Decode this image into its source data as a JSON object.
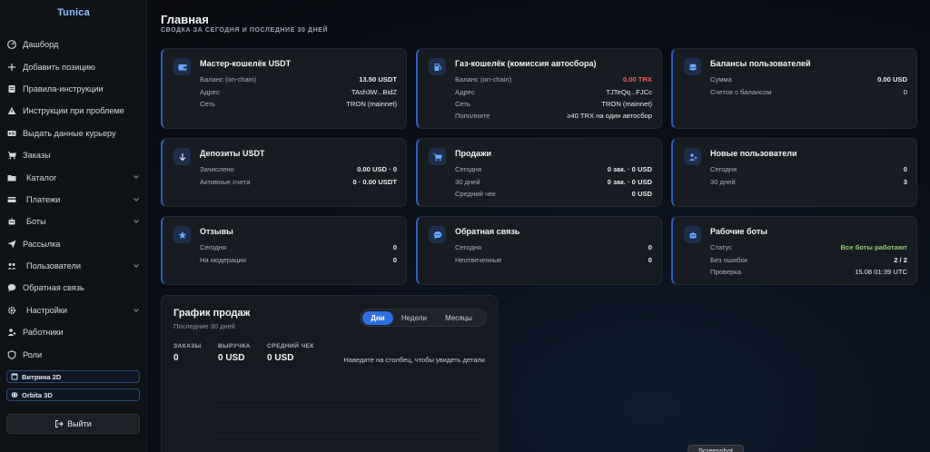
{
  "brand": "Tunica",
  "nav": [
    {
      "label": "Дашборд",
      "icon": "dashboard-icon"
    },
    {
      "label": "Добавить позицию",
      "icon": "plus-icon"
    },
    {
      "label": "Правила-инструкции",
      "icon": "document-icon"
    },
    {
      "label": "Инструкции при проблеме",
      "icon": "warning-icon"
    },
    {
      "label": "Выдать данные курьеру",
      "icon": "id-card-icon"
    },
    {
      "label": "Заказы",
      "icon": "cart-icon"
    },
    {
      "label": "Каталог",
      "icon": "folder-icon"
    },
    {
      "label": "Платежи",
      "icon": "wallet-icon"
    },
    {
      "label": "Боты",
      "icon": "robot-icon"
    },
    {
      "label": "Рассылка",
      "icon": "send-icon"
    },
    {
      "label": "Пользователи",
      "icon": "users-icon"
    },
    {
      "label": "Обратная связь",
      "icon": "chat-icon"
    },
    {
      "label": "Настройки",
      "icon": "gear-icon"
    },
    {
      "label": "Работники",
      "icon": "worker-icon"
    },
    {
      "label": "Роли",
      "icon": "shield-icon"
    }
  ],
  "env_buttons": [
    "Витрина 2D",
    "Orbita 3D"
  ],
  "logout_label": "Выйти",
  "header": {
    "title": "Главная",
    "subtitle": "СВОДКА ЗА СЕГОДНЯ И ПОСЛЕДНИЕ 30 ДНЕЙ"
  },
  "cards": {
    "master_wallet": {
      "title": "Мастер-кошелёк USDT",
      "rows": [
        {
          "k": "Баланс (on-chain)",
          "v": "13.50 USDT"
        },
        {
          "k": "Адрес",
          "v": "TAsh3W...BidZ"
        },
        {
          "k": "Сеть",
          "v": "TRON (mainnet)"
        }
      ]
    },
    "gas_wallet": {
      "title": "Газ-кошелёк (комиссия автосбора)",
      "rows": [
        {
          "k": "Баланс (on-chain)",
          "v": "0.00 TRX"
        },
        {
          "k": "Адрес",
          "v": "TJTeQq...FJCc"
        },
        {
          "k": "Сеть",
          "v": "TRON (mainnet)"
        },
        {
          "k": "Пополните",
          "v": "≥40 TRX на один автосбор"
        }
      ]
    },
    "user_balances": {
      "title": "Балансы пользователей",
      "rows": [
        {
          "k": "Сумма",
          "v": "0.00 USD"
        },
        {
          "k": "Счетов с балансом",
          "v": "0"
        }
      ]
    },
    "deposits": {
      "title": "Депозиты USDT",
      "rows": [
        {
          "k": "Зачислено",
          "v": "0.00 USD · 0"
        },
        {
          "k": "Активные счета",
          "v": "0 · 0.00 USDT"
        }
      ]
    },
    "sales": {
      "title": "Продажи",
      "rows": [
        {
          "k": "Сегодня",
          "v": "0 зак. · 0 USD"
        },
        {
          "k": "30 дней",
          "v": "0 зак. · 0 USD"
        },
        {
          "k": "Средний чек",
          "v": "0 USD"
        }
      ]
    },
    "new_users": {
      "title": "Новые пользователи",
      "rows": [
        {
          "k": "Сегодня",
          "v": "0"
        },
        {
          "k": "30 дней",
          "v": "3"
        }
      ]
    },
    "reviews": {
      "title": "Отзывы",
      "rows": [
        {
          "k": "Сегодня",
          "v": "0"
        },
        {
          "k": "На модерации",
          "v": "0"
        }
      ]
    },
    "feedback": {
      "title": "Обратная связь",
      "rows": [
        {
          "k": "Сегодня",
          "v": "0"
        },
        {
          "k": "Неотвеченные",
          "v": "0"
        }
      ]
    },
    "bots": {
      "title": "Рабочие боты",
      "rows": [
        {
          "k": "Статус",
          "v": "Все боты работают"
        },
        {
          "k": "Без ошибок",
          "v": "2 / 2"
        },
        {
          "k": "Проверка",
          "v": "15.08 01:39 UTC"
        }
      ]
    }
  },
  "chart": {
    "title": "График продаж",
    "subtitle": "Последние 30 дней",
    "tabs": [
      "Дни",
      "Недели",
      "Месяцы"
    ],
    "active_tab": "Дни",
    "stats": [
      {
        "label": "ЗАКАЗЫ",
        "value": "0"
      },
      {
        "label": "ВЫРУЧКА",
        "value": "0 USD"
      },
      {
        "label": "СРЕДНИЙ ЧЕК",
        "value": "0 USD"
      }
    ],
    "hint": "Наведите на столбец, чтобы увидеть детали"
  },
  "tooltip": "Screenshot",
  "colors": {
    "accent": "#2d6fe0",
    "negative": "#ff5a5a",
    "positive": "#8fd16a"
  }
}
